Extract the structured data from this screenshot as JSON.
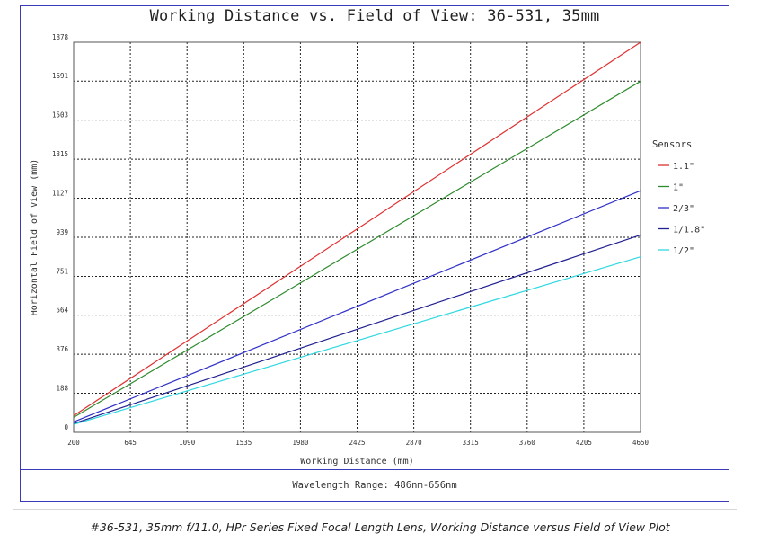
{
  "chart_data": {
    "type": "line",
    "title": "Working Distance vs. Field of View: 36-531, 35mm",
    "xlabel": "Working Distance (mm)",
    "ylabel": "Horizontal Field of View (mm)",
    "xlim": [
      200,
      4650
    ],
    "ylim": [
      0,
      1878
    ],
    "x_ticks": [
      "200",
      "645",
      "1090",
      "1535",
      "1980",
      "2425",
      "2870",
      "3315",
      "3760",
      "4205",
      "4650"
    ],
    "y_ticks": [
      "0",
      "188",
      "376",
      "564",
      "751",
      "939",
      "1127",
      "1315",
      "1503",
      "1691",
      "1878"
    ],
    "grid": true,
    "legend_title": "Sensors",
    "legend_position": "right",
    "series": [
      {
        "name": "1.1\"",
        "color": "#e03030",
        "x": [
          200,
          4650
        ],
        "y": [
          80,
          1878
        ]
      },
      {
        "name": "1\"",
        "color": "#2e8b2e",
        "x": [
          200,
          4650
        ],
        "y": [
          72,
          1690
        ]
      },
      {
        "name": "2/3\"",
        "color": "#3030c8",
        "x": [
          200,
          4650
        ],
        "y": [
          50,
          1163
        ]
      },
      {
        "name": "1/1.8\"",
        "color": "#202090",
        "x": [
          200,
          4650
        ],
        "y": [
          42,
          950
        ]
      },
      {
        "name": "1/2\"",
        "color": "#30d8e0",
        "x": [
          200,
          4650
        ],
        "y": [
          38,
          845
        ]
      }
    ]
  },
  "footer": {
    "wavelength": "Wavelength Range: 486nm-656nm"
  },
  "caption": "#36-531, 35mm f/11.0, HPr Series Fixed Focal Length Lens, Working Distance versus Field of View Plot"
}
